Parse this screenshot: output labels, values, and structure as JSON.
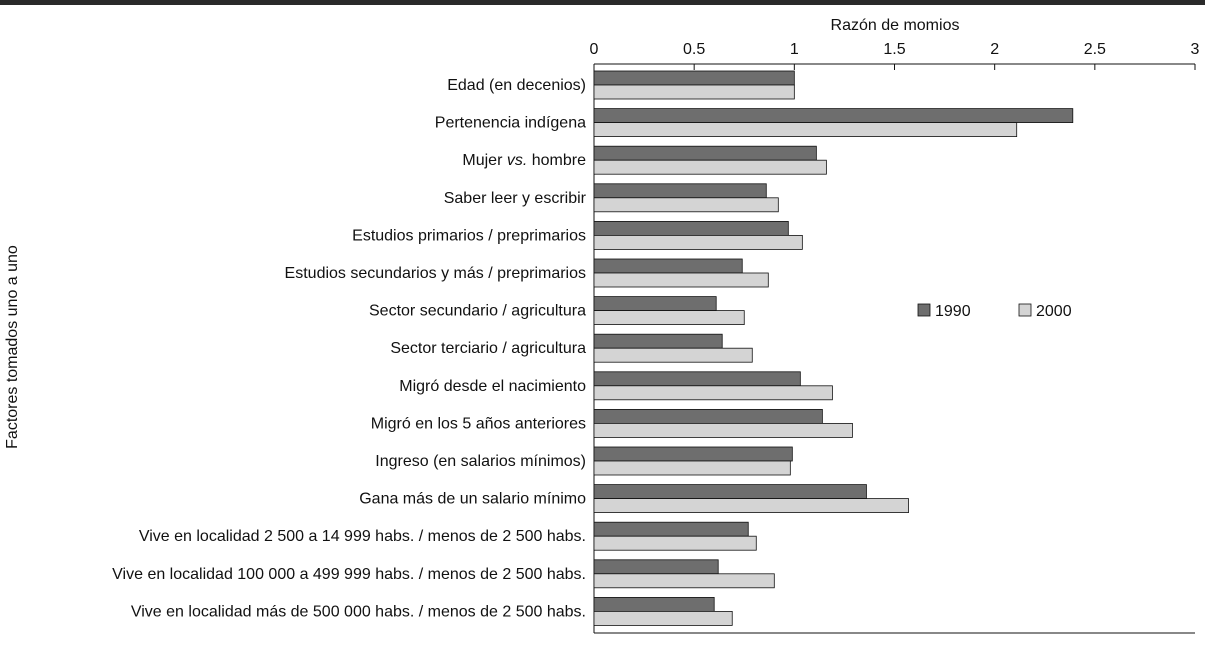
{
  "chart_data": {
    "type": "bar",
    "orientation": "horizontal",
    "title": "",
    "xlabel": "Razón de momios",
    "ylabel": "Factores tomados uno a uno",
    "xlim": [
      0,
      3
    ],
    "xticks": [
      0,
      0.5,
      1,
      1.5,
      2,
      2.5,
      3
    ],
    "tick_labels": [
      "0",
      "0.5",
      "1",
      "1.5",
      "2",
      "2.5",
      "3"
    ],
    "x_axis_position": "top",
    "grid": false,
    "legend_position": "center-right",
    "categories": [
      "Edad (en decenios)",
      "Pertenencia indígena",
      "Mujer vs. hombre",
      "Saber leer y escribir",
      "Estudios primarios / preprimarios",
      "Estudios secundarios y más / preprimarios",
      "Sector secundario / agricultura",
      "Sector terciario / agricultura",
      "Migró desde el nacimiento",
      "Migró en los 5 años anteriores",
      "Ingreso (en salarios mínimos)",
      "Gana más de un salario mínimo",
      "Vive en localidad 2 500 a 14 999 habs. / menos de 2 500 habs.",
      "Vive en localidad 100 000 a 499 999 habs. / menos de 2 500 habs.",
      "Vive en localidad más de 500 000 habs. / menos de 2 500 habs."
    ],
    "category_label_parts": {
      "2": [
        "Mujer ",
        "vs.",
        " hombre"
      ]
    },
    "series": [
      {
        "name": "1990",
        "color": "#6e6e6e",
        "values": [
          1.0,
          2.39,
          1.11,
          0.86,
          0.97,
          0.74,
          0.61,
          0.64,
          1.03,
          1.14,
          0.99,
          1.36,
          0.77,
          0.62,
          0.6
        ]
      },
      {
        "name": "2000",
        "color": "#d4d4d4",
        "values": [
          1.0,
          2.11,
          1.16,
          0.92,
          1.04,
          0.87,
          0.75,
          0.79,
          1.19,
          1.29,
          0.98,
          1.57,
          0.81,
          0.9,
          0.69
        ]
      }
    ]
  }
}
